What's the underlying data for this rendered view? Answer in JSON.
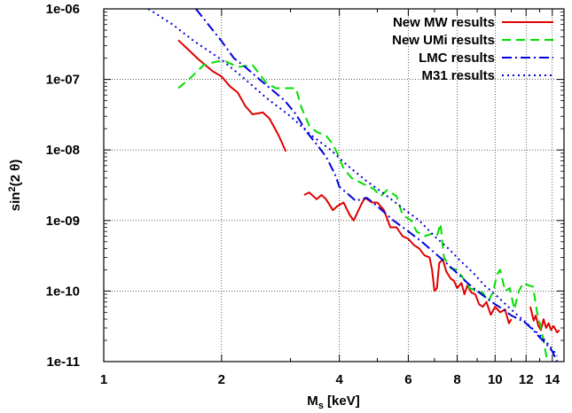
{
  "chart_data": {
    "type": "line",
    "xlabel": {
      "main": "M",
      "sub": "s",
      "rest": " [keV]"
    },
    "ylabel": {
      "main": "sin",
      "sup": "2",
      "rest": "(2 θ)"
    },
    "xscale": "log",
    "yscale": "log",
    "xlim": [
      1,
      15
    ],
    "ylim": [
      1e-11,
      1e-06
    ],
    "xticks": [
      1,
      2,
      4,
      6,
      8,
      10,
      12,
      14
    ],
    "xtick_labels": [
      "1",
      "2",
      "4",
      "6",
      "8",
      "10",
      "12",
      "14"
    ],
    "yticks": [
      1e-11,
      1e-10,
      1e-09,
      1e-08,
      1e-07,
      1e-06
    ],
    "ytick_labels": [
      "1e-11",
      "1e-10",
      "1e-09",
      "1e-08",
      "1e-07",
      "1e-06"
    ],
    "grid": true,
    "legend_position": "top-right",
    "series": [
      {
        "name": "New MW  results",
        "color": "#e00000",
        "dash": "solid",
        "segments": [
          [
            [
              1.55,
              3.6e-07
            ],
            [
              1.65,
              2.6e-07
            ],
            [
              1.75,
              1.9e-07
            ],
            [
              1.9,
              1.3e-07
            ],
            [
              2.0,
              1.1e-07
            ],
            [
              2.1,
              8e-08
            ],
            [
              2.2,
              6.5e-08
            ],
            [
              2.3,
              4.2e-08
            ],
            [
              2.4,
              3.2e-08
            ],
            [
              2.55,
              3.4e-08
            ],
            [
              2.65,
              2.8e-08
            ],
            [
              2.8,
              1.6e-08
            ],
            [
              2.92,
              9.5e-09
            ]
          ],
          [
            [
              3.25,
              2.3e-09
            ],
            [
              3.35,
              2.5e-09
            ],
            [
              3.5,
              2e-09
            ],
            [
              3.6,
              2.3e-09
            ],
            [
              3.7,
              2e-09
            ],
            [
              3.85,
              1.4e-09
            ],
            [
              3.95,
              1.6e-09
            ],
            [
              4.1,
              1.8e-09
            ],
            [
              4.25,
              1.2e-09
            ],
            [
              4.35,
              1e-09
            ],
            [
              4.55,
              1.7e-09
            ],
            [
              4.65,
              2.1e-09
            ],
            [
              4.85,
              1.8e-09
            ],
            [
              5.0,
              1.8e-09
            ],
            [
              5.2,
              1.4e-09
            ],
            [
              5.4,
              8e-10
            ],
            [
              5.6,
              8e-10
            ],
            [
              5.8,
              6e-10
            ],
            [
              6.0,
              5.5e-10
            ],
            [
              6.2,
              4.5e-10
            ],
            [
              6.4,
              4e-10
            ],
            [
              6.6,
              3.2e-10
            ],
            [
              6.8,
              3e-10
            ],
            [
              6.9,
              2e-10
            ],
            [
              7.0,
              1e-10
            ],
            [
              7.1,
              1.1e-10
            ],
            [
              7.2,
              2.5e-10
            ],
            [
              7.35,
              2.8e-10
            ],
            [
              7.5,
              1.9e-10
            ],
            [
              7.7,
              1.5e-10
            ],
            [
              7.85,
              1.4e-10
            ],
            [
              8.0,
              1.1e-10
            ],
            [
              8.2,
              1.3e-10
            ],
            [
              8.35,
              9e-11
            ],
            [
              8.5,
              1.2e-10
            ],
            [
              8.7,
              9.5e-11
            ],
            [
              8.9,
              9e-11
            ],
            [
              9.1,
              6.5e-11
            ],
            [
              9.3,
              6e-11
            ],
            [
              9.5,
              7e-11
            ],
            [
              9.75,
              4.6e-11
            ],
            [
              10.0,
              6e-11
            ],
            [
              10.3,
              5e-11
            ],
            [
              10.6,
              5.5e-11
            ],
            [
              10.85,
              3.5e-11
            ],
            [
              11.0,
              4e-11
            ]
          ],
          [
            [
              12.3,
              6e-11
            ],
            [
              12.55,
              3.8e-11
            ],
            [
              12.7,
              4.5e-11
            ],
            [
              12.9,
              3.2e-11
            ],
            [
              13.1,
              2.8e-11
            ],
            [
              13.3,
              4e-11
            ],
            [
              13.5,
              3e-11
            ],
            [
              13.7,
              3.5e-11
            ],
            [
              13.9,
              2.8e-11
            ],
            [
              14.1,
              3.2e-11
            ],
            [
              14.4,
              2.6e-11
            ],
            [
              14.6,
              2.8e-11
            ]
          ]
        ]
      },
      {
        "name": "New UMi results",
        "color": "#00dd00",
        "dash": "long-dash",
        "segments": [
          [
            [
              1.55,
              7.5e-08
            ],
            [
              1.65,
              1e-07
            ],
            [
              1.8,
              1.6e-07
            ],
            [
              1.95,
              1.8e-07
            ],
            [
              2.05,
              1.8e-07
            ],
            [
              2.2,
              1.5e-07
            ],
            [
              2.4,
              1.6e-07
            ],
            [
              2.6,
              9e-08
            ],
            [
              2.75,
              7.5e-08
            ],
            [
              2.95,
              7.5e-08
            ],
            [
              3.1,
              7.5e-08
            ],
            [
              3.2,
              4e-08
            ],
            [
              3.35,
              2.2e-08
            ],
            [
              3.5,
              1.8e-08
            ],
            [
              3.7,
              1.6e-08
            ],
            [
              3.85,
              1.2e-08
            ],
            [
              3.95,
              9e-09
            ],
            [
              4.1,
              5.5e-09
            ],
            [
              4.3,
              4e-09
            ],
            [
              4.6,
              3.3e-09
            ],
            [
              4.9,
              2.8e-09
            ],
            [
              5.1,
              2.2e-09
            ],
            [
              5.3,
              2.7e-09
            ],
            [
              5.6,
              2.2e-09
            ],
            [
              5.8,
              1.2e-09
            ],
            [
              6.1,
              1e-09
            ],
            [
              6.3,
              7e-10
            ],
            [
              6.6,
              6e-10
            ],
            [
              6.9,
              6.5e-10
            ],
            [
              7.1,
              6e-10
            ],
            [
              7.25,
              9e-10
            ],
            [
              7.4,
              3e-10
            ],
            [
              7.7,
              2.1e-10
            ],
            [
              8.0,
              2e-10
            ],
            [
              8.3,
              1.5e-10
            ],
            [
              8.6,
              1.1e-10
            ],
            [
              9.0,
              1e-10
            ],
            [
              9.3,
              9.5e-11
            ],
            [
              9.6,
              7e-11
            ],
            [
              9.9,
              1e-10
            ],
            [
              10.1,
              1.7e-10
            ],
            [
              10.3,
              2e-10
            ],
            [
              10.6,
              1e-10
            ],
            [
              10.9,
              1.1e-10
            ],
            [
              11.2,
              5.5e-11
            ],
            [
              11.5,
              1e-10
            ],
            [
              11.8,
              1.3e-10
            ],
            [
              12.2,
              1.2e-10
            ],
            [
              12.5,
              1.15e-10
            ],
            [
              12.8,
              5e-11
            ],
            [
              13.1,
              3e-11
            ],
            [
              13.3,
              2e-11
            ],
            [
              13.6,
              1e-11
            ]
          ]
        ]
      },
      {
        "name": "LMC results",
        "color": "#0000dd",
        "dash": "dash-dot",
        "segments": [
          [
            [
              1.72,
              1e-06
            ],
            [
              1.85,
              6e-07
            ],
            [
              2.0,
              3.5e-07
            ],
            [
              2.15,
              2e-07
            ],
            [
              2.3,
              1.5e-07
            ],
            [
              2.5,
              1e-07
            ],
            [
              2.7,
              7e-08
            ],
            [
              2.9,
              5e-08
            ],
            [
              3.1,
              3.2e-08
            ],
            [
              3.3,
              1.8e-08
            ],
            [
              3.5,
              1.2e-08
            ],
            [
              3.7,
              8e-09
            ],
            [
              3.9,
              4.5e-09
            ],
            [
              4.0,
              3e-09
            ],
            [
              4.2,
              2.4e-09
            ],
            [
              4.4,
              1.9e-09
            ],
            [
              4.7,
              2.1e-09
            ],
            [
              5.0,
              1.6e-09
            ],
            [
              5.5,
              1e-09
            ],
            [
              6.0,
              7e-10
            ],
            [
              6.5,
              5e-10
            ],
            [
              7.0,
              3.5e-10
            ],
            [
              7.5,
              2.5e-10
            ],
            [
              8.0,
              1.8e-10
            ],
            [
              8.5,
              1.3e-10
            ],
            [
              9.0,
              1e-10
            ],
            [
              9.5,
              8e-11
            ],
            [
              10.0,
              6.5e-11
            ],
            [
              10.5,
              5.5e-11
            ],
            [
              11.0,
              4.5e-11
            ],
            [
              11.5,
              4e-11
            ],
            [
              12.0,
              3.5e-11
            ],
            [
              12.5,
              2.8e-11
            ],
            [
              13.0,
              2.2e-11
            ],
            [
              13.5,
              1.8e-11
            ],
            [
              14.0,
              1.4e-11
            ],
            [
              14.4,
              1e-11
            ]
          ]
        ]
      },
      {
        "name": "M31 results",
        "color": "#0000dd",
        "dash": "dotted",
        "segments": [
          [
            [
              1.3,
              1e-06
            ],
            [
              1.5,
              6e-07
            ],
            [
              1.7,
              3.5e-07
            ],
            [
              2.0,
              1.9e-07
            ],
            [
              2.3,
              1e-07
            ],
            [
              2.6,
              5.5e-08
            ],
            [
              3.0,
              3e-08
            ],
            [
              3.4,
              1.6e-08
            ],
            [
              3.8,
              1e-08
            ],
            [
              4.2,
              6e-09
            ],
            [
              4.7,
              3.6e-09
            ],
            [
              5.2,
              2.4e-09
            ],
            [
              5.8,
              1.5e-09
            ],
            [
              6.4,
              1e-09
            ],
            [
              7.0,
              6e-10
            ],
            [
              7.6,
              4e-10
            ],
            [
              8.2,
              2.6e-10
            ],
            [
              8.8,
              1.8e-10
            ],
            [
              9.4,
              1.2e-10
            ],
            [
              10.0,
              9e-11
            ],
            [
              10.8,
              6e-11
            ],
            [
              11.6,
              4.2e-11
            ],
            [
              12.4,
              3e-11
            ],
            [
              13.2,
              2.2e-11
            ],
            [
              14.0,
              1.5e-11
            ],
            [
              14.4,
              1.2e-11
            ]
          ]
        ]
      }
    ]
  }
}
